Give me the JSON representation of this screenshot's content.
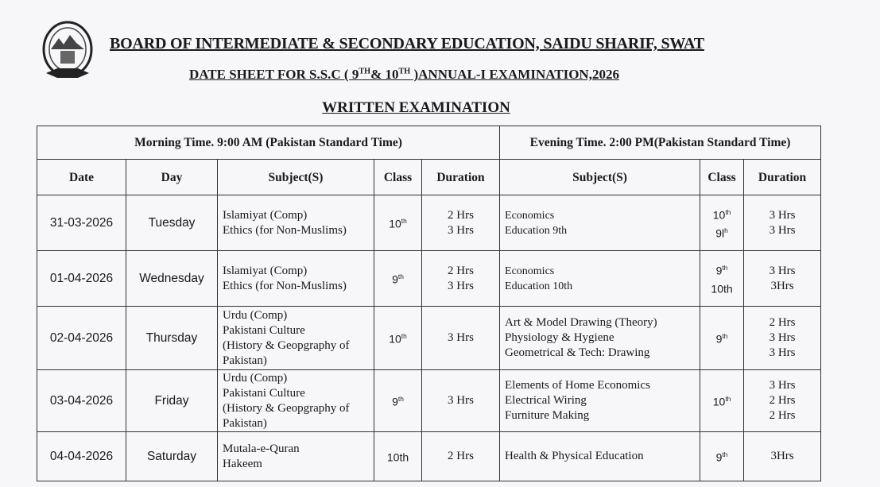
{
  "header": {
    "title": "BOARD OF INTERMEDIATE & SECONDARY EDUCATION, SAIDU SHARIF, SWAT",
    "subtitle_pre": "DATE SHEET FOR S.S.C ( 9",
    "sup1": "TH",
    "subtitle_mid": "& 10",
    "sup2": "TH",
    "subtitle_post": " )ANNUAL-I EXAMINATION,2026",
    "section": "WRITTEN EXAMINATION"
  },
  "table": {
    "morning_heading": "Morning Time. 9:00 AM (Pakistan Standard Time)",
    "evening_heading": "Evening Time. 2:00 PM(Pakistan Standard Time)",
    "columns": [
      "Date",
      "Day",
      "Subject(S)",
      "Class",
      "Duration",
      "Subject(S)",
      "Class",
      "Duration"
    ],
    "rows": [
      {
        "date": "31-03-2026",
        "day": "Tuesday",
        "m_subjects": [
          "Islamiyat (Comp)",
          "Ethics (for Non-Muslims)"
        ],
        "m_class": [
          [
            "10",
            "th"
          ]
        ],
        "m_duration": [
          "2 Hrs",
          "3 Hrs"
        ],
        "e_subjects": [
          "Economics",
          "Education 9th"
        ],
        "e_class": [
          [
            "10",
            "th"
          ],
          [
            "9l",
            "h"
          ]
        ],
        "e_duration": [
          "3 Hrs",
          "3 Hrs"
        ]
      },
      {
        "date": "01-04-2026",
        "day": "Wednesday",
        "m_subjects": [
          "Islamiyat (Comp)",
          "Ethics (for Non-Muslims)"
        ],
        "m_class": [
          [
            "9",
            "th"
          ]
        ],
        "m_duration": [
          "2 Hrs",
          "3 Hrs"
        ],
        "e_subjects": [
          "Economics",
          "Education 10th"
        ],
        "e_class": [
          [
            "9",
            "th"
          ],
          [
            "10th",
            ""
          ]
        ],
        "e_duration": [
          "3 Hrs",
          "3Hrs"
        ]
      },
      {
        "date": "02-04-2026",
        "day": "Thursday",
        "m_subjects": [
          "Urdu (Comp)",
          "Pakistani Culture",
          "(History & Geopgraphy of",
          "Pakistan)"
        ],
        "m_class": [
          [
            "10",
            "th"
          ]
        ],
        "m_duration": [
          "3 Hrs"
        ],
        "e_subjects": [
          "Art & Model Drawing (Theory)",
          "Physiology & Hygiene",
          "Geometrical & Tech: Drawing"
        ],
        "e_class": [
          [
            "9",
            "th"
          ]
        ],
        "e_duration": [
          "2 Hrs",
          "3 Hrs",
          "3 Hrs"
        ]
      },
      {
        "date": "03-04-2026",
        "day": "Friday",
        "m_subjects": [
          "Urdu (Comp)",
          "Pakistani Culture",
          "(History & Geopgraphy of",
          "Pakistan)"
        ],
        "m_class": [
          [
            "9",
            "th"
          ]
        ],
        "m_duration": [
          "3 Hrs"
        ],
        "e_subjects": [
          "Elements of Home Economics",
          "Electrical Wiring",
          "Furniture Making"
        ],
        "e_class": [
          [
            "10",
            "th"
          ]
        ],
        "e_duration": [
          "3 Hrs",
          "2 Hrs",
          "2 Hrs"
        ]
      },
      {
        "date": "04-04-2026",
        "day": "Saturday",
        "m_subjects": [
          "Mutala-e-Quran",
          "Hakeem"
        ],
        "m_class": [
          [
            "10th",
            ""
          ]
        ],
        "m_duration": [
          "2 Hrs"
        ],
        "e_subjects": [
          "Health & Physical Education"
        ],
        "e_class": [
          [
            "9",
            "th"
          ]
        ],
        "e_duration": [
          "3Hrs"
        ]
      }
    ]
  }
}
